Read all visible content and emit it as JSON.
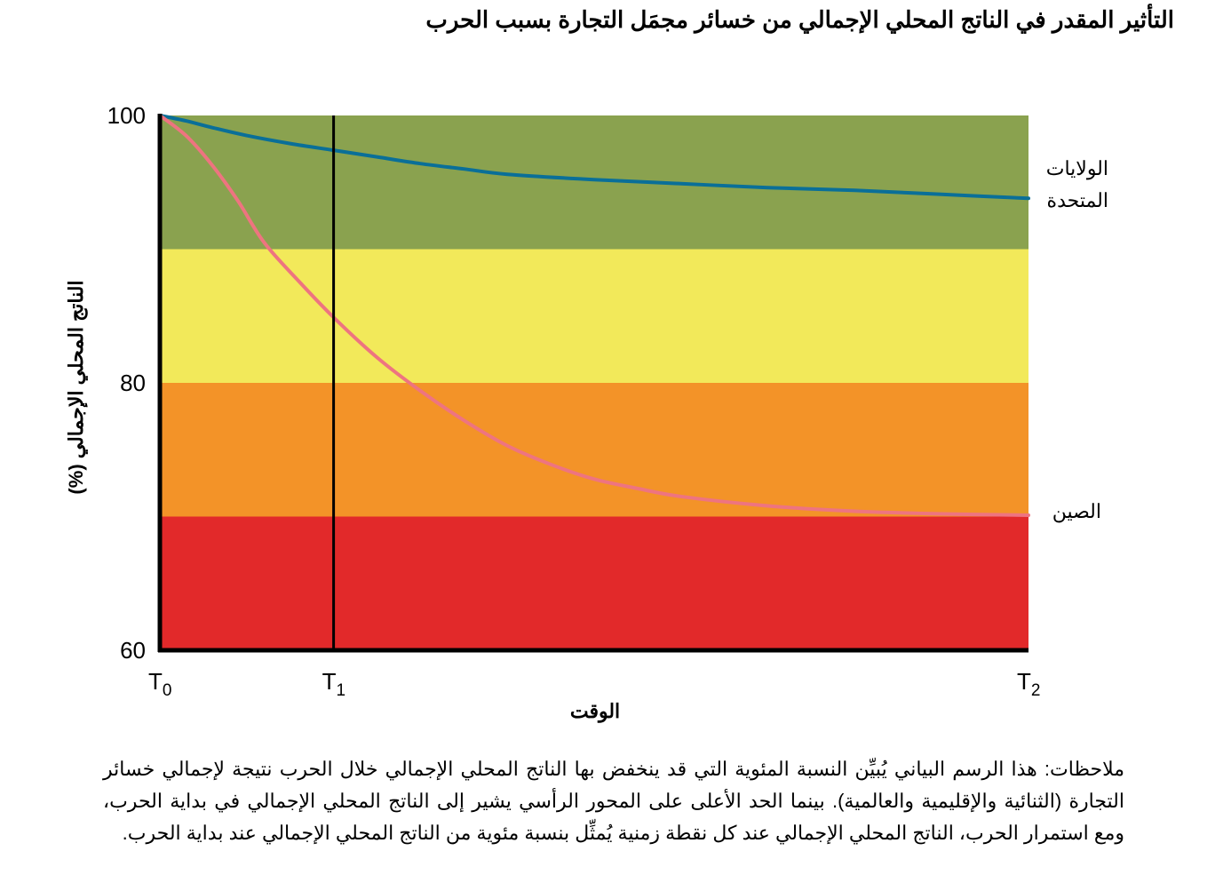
{
  "title": "التأثير المقدر في الناتج المحلي الإجمالي من خسائر مجمَل التجارة بسبب الحرب",
  "notes": "ملاحظات: هذا الرسم البياني يُبيِّن النسبة المئوية التي قد ينخفض بها الناتج المحلي الإجمالي خلال الحرب نتيجة لإجمالي خسائر التجارة (الثنائية والإقليمية والعالمية). بينما الحد الأعلى على المحور الرأسي يشير إلى الناتج المحلي الإجمالي في بداية الحرب، ومع استمرار الحرب، الناتج المحلي الإجمالي عند كل نقطة زمنية يُمثِّل بنسبة مئوية من الناتج المحلي الإجمالي عند بداية الحرب.",
  "chart_data": {
    "type": "line",
    "title": "التأثير المقدر في الناتج المحلي الإجمالي من خسائر مجمَل التجارة بسبب الحرب",
    "xlabel": "الوقت",
    "ylabel": "الناتج المحلي الإجمالي (%)",
    "ylim": [
      60,
      100
    ],
    "xlim": [
      0,
      1
    ],
    "yticks": [
      100,
      80,
      60
    ],
    "xticks": [
      {
        "base": "T",
        "sub": "0",
        "x": 0
      },
      {
        "base": "T",
        "sub": "1",
        "x": 0.2
      },
      {
        "base": "T",
        "sub": "2",
        "x": 1
      }
    ],
    "vertical_marker_x": 0.2,
    "bands": [
      {
        "from": 90,
        "to": 100,
        "color": "#8aa24f"
      },
      {
        "from": 80,
        "to": 90,
        "color": "#f2e95a"
      },
      {
        "from": 70,
        "to": 80,
        "color": "#f39328"
      },
      {
        "from": 60,
        "to": 70,
        "color": "#e2292a"
      }
    ],
    "grid": false,
    "series": [
      {
        "name": "الولايات المتحدة",
        "name_lines": [
          "الولايات",
          "المتحدة"
        ],
        "color": "#0a6f98",
        "x": [
          0,
          0.03,
          0.06,
          0.1,
          0.15,
          0.2,
          0.25,
          0.3,
          0.35,
          0.4,
          0.5,
          0.6,
          0.7,
          0.8,
          0.9,
          1.0
        ],
        "y": [
          100,
          99.6,
          99.1,
          98.5,
          97.9,
          97.4,
          96.9,
          96.4,
          96.0,
          95.6,
          95.2,
          94.9,
          94.6,
          94.4,
          94.1,
          93.8
        ]
      },
      {
        "name": "الصين",
        "name_lines": [
          "الصين"
        ],
        "color": "#ee7480",
        "x": [
          0,
          0.03,
          0.06,
          0.09,
          0.12,
          0.16,
          0.2,
          0.25,
          0.3,
          0.35,
          0.4,
          0.45,
          0.5,
          0.55,
          0.6,
          0.7,
          0.8,
          0.9,
          1.0
        ],
        "y": [
          100,
          98.5,
          96.3,
          93.6,
          90.5,
          87.6,
          84.9,
          81.9,
          79.4,
          77.2,
          75.3,
          73.9,
          72.8,
          72.1,
          71.5,
          70.8,
          70.4,
          70.2,
          70.1
        ]
      }
    ]
  }
}
